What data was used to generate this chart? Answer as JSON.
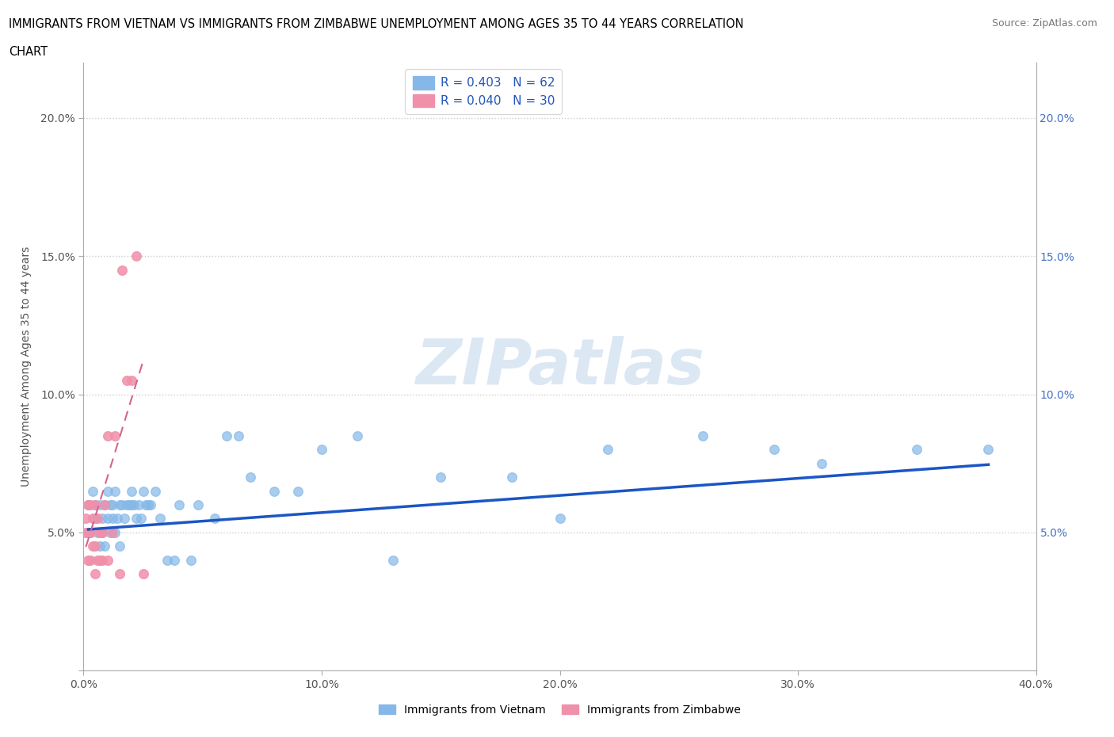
{
  "title_line1": "IMMIGRANTS FROM VIETNAM VS IMMIGRANTS FROM ZIMBABWE UNEMPLOYMENT AMONG AGES 35 TO 44 YEARS CORRELATION",
  "title_line2": "CHART",
  "source": "Source: ZipAtlas.com",
  "ylabel": "Unemployment Among Ages 35 to 44 years",
  "xlim": [
    0.0,
    0.4
  ],
  "ylim": [
    0.0,
    0.22
  ],
  "xticks": [
    0.0,
    0.1,
    0.2,
    0.3,
    0.4
  ],
  "yticks": [
    0.0,
    0.05,
    0.1,
    0.15,
    0.2
  ],
  "xtick_labels": [
    "0.0%",
    "10.0%",
    "20.0%",
    "30.0%",
    "40.0%"
  ],
  "ytick_labels_left": [
    "",
    "5.0%",
    "10.0%",
    "15.0%",
    "20.0%"
  ],
  "ytick_labels_right": [
    "",
    "5.0%",
    "10.0%",
    "15.0%",
    "20.0%"
  ],
  "legend_vietnam": "R = 0.403   N = 62",
  "legend_zimbabwe": "R = 0.040   N = 30",
  "vietnam_color": "#85b8e8",
  "zimbabwe_color": "#f090aa",
  "vietnam_line_color": "#1a56c4",
  "zimbabwe_line_color": "#d06888",
  "watermark_color": "#c5d8ee",
  "vietnam_x": [
    0.002,
    0.003,
    0.004,
    0.005,
    0.005,
    0.006,
    0.007,
    0.007,
    0.008,
    0.008,
    0.009,
    0.009,
    0.01,
    0.01,
    0.011,
    0.011,
    0.012,
    0.012,
    0.013,
    0.013,
    0.014,
    0.015,
    0.015,
    0.016,
    0.017,
    0.018,
    0.019,
    0.02,
    0.02,
    0.021,
    0.022,
    0.023,
    0.024,
    0.025,
    0.026,
    0.027,
    0.028,
    0.03,
    0.032,
    0.035,
    0.038,
    0.04,
    0.045,
    0.048,
    0.055,
    0.06,
    0.065,
    0.07,
    0.08,
    0.09,
    0.1,
    0.115,
    0.13,
    0.15,
    0.18,
    0.2,
    0.22,
    0.26,
    0.29,
    0.31,
    0.35,
    0.38
  ],
  "vietnam_y": [
    0.06,
    0.05,
    0.065,
    0.055,
    0.06,
    0.05,
    0.045,
    0.06,
    0.05,
    0.055,
    0.045,
    0.06,
    0.055,
    0.065,
    0.05,
    0.06,
    0.055,
    0.06,
    0.05,
    0.065,
    0.055,
    0.045,
    0.06,
    0.06,
    0.055,
    0.06,
    0.06,
    0.06,
    0.065,
    0.06,
    0.055,
    0.06,
    0.055,
    0.065,
    0.06,
    0.06,
    0.06,
    0.065,
    0.055,
    0.04,
    0.04,
    0.06,
    0.04,
    0.06,
    0.055,
    0.085,
    0.085,
    0.07,
    0.065,
    0.065,
    0.08,
    0.085,
    0.04,
    0.07,
    0.07,
    0.055,
    0.08,
    0.085,
    0.08,
    0.075,
    0.08,
    0.08
  ],
  "zimbabwe_x": [
    0.001,
    0.001,
    0.002,
    0.002,
    0.002,
    0.003,
    0.003,
    0.003,
    0.004,
    0.004,
    0.005,
    0.005,
    0.005,
    0.006,
    0.006,
    0.007,
    0.007,
    0.008,
    0.008,
    0.009,
    0.01,
    0.01,
    0.012,
    0.013,
    0.015,
    0.016,
    0.018,
    0.02,
    0.022,
    0.025
  ],
  "zimbabwe_y": [
    0.05,
    0.055,
    0.04,
    0.05,
    0.06,
    0.04,
    0.05,
    0.06,
    0.045,
    0.055,
    0.035,
    0.045,
    0.06,
    0.04,
    0.055,
    0.04,
    0.05,
    0.04,
    0.05,
    0.06,
    0.04,
    0.085,
    0.05,
    0.085,
    0.035,
    0.145,
    0.105,
    0.105,
    0.15,
    0.035
  ],
  "vietnam_slope": 0.062,
  "vietnam_intercept": 0.051,
  "zimbabwe_slope": 2.8,
  "zimbabwe_intercept": 0.042,
  "vn_trendline_x": [
    0.002,
    0.38
  ],
  "zw_trendline_x": [
    0.001,
    0.025
  ]
}
